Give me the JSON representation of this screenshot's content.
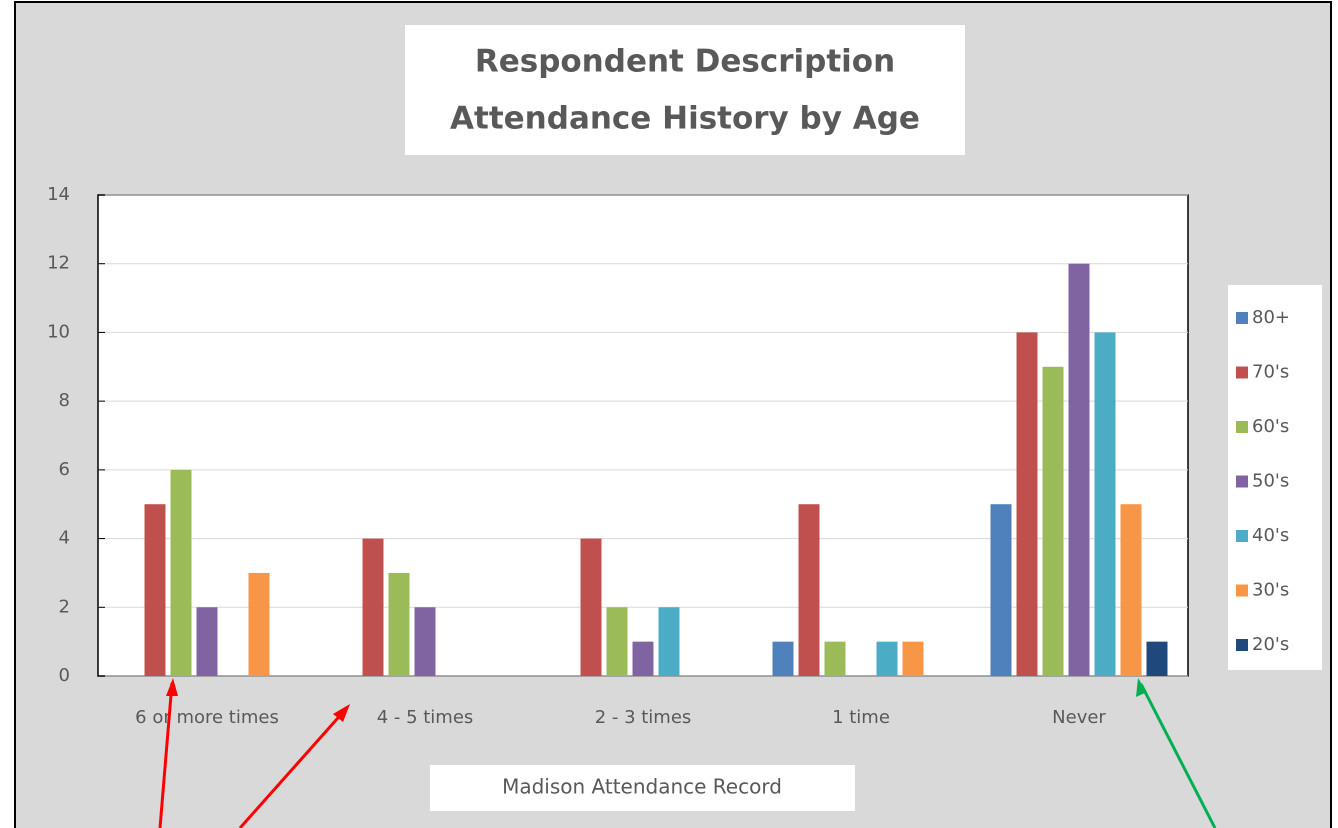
{
  "chart_data": {
    "type": "bar",
    "title": [
      "Respondent Description",
      "Attendance History by Age"
    ],
    "x_label": "Madison Attendance Record",
    "categories": [
      "6 or more times",
      "4 - 5 times",
      "2 - 3 times",
      "1 time",
      "Never"
    ],
    "series": [
      {
        "name": "80+",
        "color": "#4f81bd",
        "values": [
          0,
          0,
          0,
          1,
          5
        ]
      },
      {
        "name": "70's",
        "color": "#c0504d",
        "values": [
          5,
          4,
          4,
          5,
          10
        ]
      },
      {
        "name": "60's",
        "color": "#9bbb59",
        "values": [
          6,
          3,
          2,
          1,
          9
        ]
      },
      {
        "name": "50's",
        "color": "#8064a2",
        "values": [
          2,
          2,
          1,
          0,
          12
        ]
      },
      {
        "name": "40's",
        "color": "#4bacc6",
        "values": [
          0,
          0,
          2,
          1,
          10
        ]
      },
      {
        "name": "30's",
        "color": "#f79646",
        "values": [
          3,
          0,
          0,
          1,
          5
        ]
      },
      {
        "name": "20's",
        "color": "#1f497d",
        "values": [
          0,
          0,
          0,
          0,
          1
        ]
      }
    ],
    "ylim": [
      0,
      14
    ],
    "yticks": [
      0,
      2,
      4,
      6,
      8,
      10,
      12,
      14
    ],
    "grid": true,
    "legend": "right"
  }
}
